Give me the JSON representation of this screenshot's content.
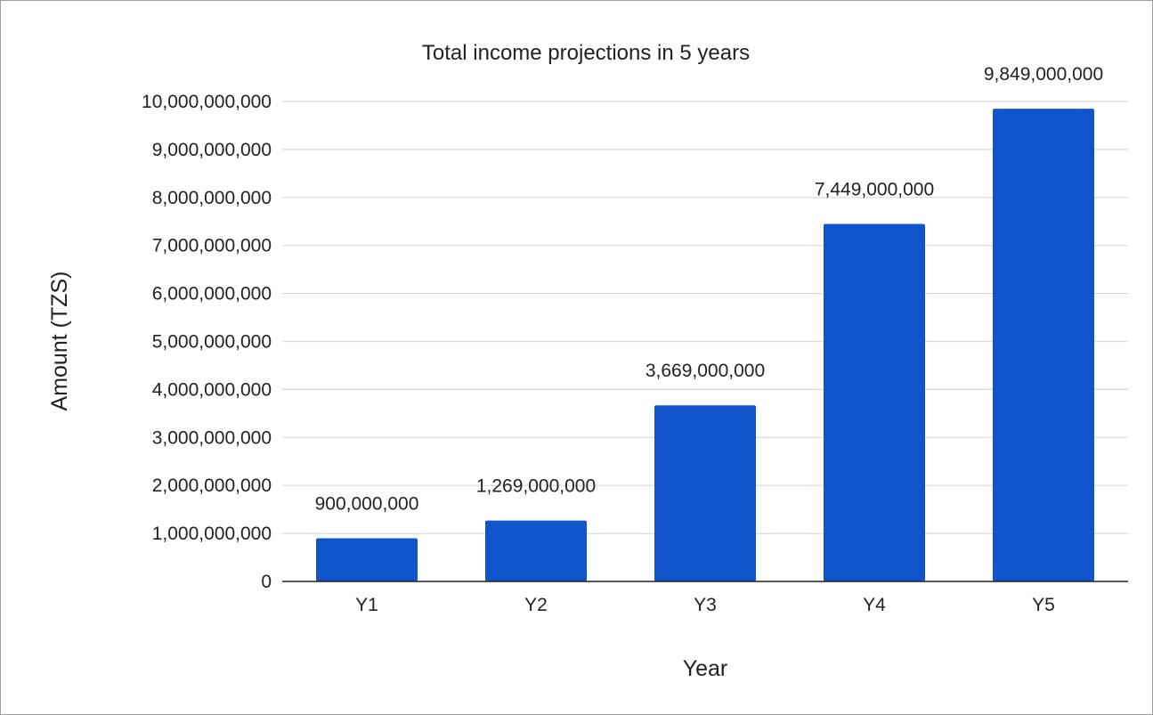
{
  "chart_data": {
    "type": "bar",
    "title": "Total income projections in 5 years",
    "xlabel": "Year",
    "ylabel": "Amount (TZS)",
    "categories": [
      "Y1",
      "Y2",
      "Y3",
      "Y4",
      "Y5"
    ],
    "values": [
      900000000,
      1269000000,
      3669000000,
      7449000000,
      9849000000
    ],
    "data_labels": [
      "900,000,000",
      "1,269,000,000",
      "3,669,000,000",
      "7,449,000,000",
      "9,849,000,000"
    ],
    "ylim": [
      0,
      10000000000
    ],
    "yticks": [
      0,
      1000000000,
      2000000000,
      3000000000,
      4000000000,
      5000000000,
      6000000000,
      7000000000,
      8000000000,
      9000000000,
      10000000000
    ],
    "ytick_labels": [
      "0",
      "1,000,000,000",
      "2,000,000,000",
      "3,000,000,000",
      "4,000,000,000",
      "5,000,000,000",
      "6,000,000,000",
      "7,000,000,000",
      "8,000,000,000",
      "9,000,000,000",
      "10,000,000,000"
    ],
    "grid": true,
    "legend": "none",
    "colors": {
      "bar": "#1155cc",
      "grid": "#d9d9d9",
      "axis": "#222222"
    }
  }
}
